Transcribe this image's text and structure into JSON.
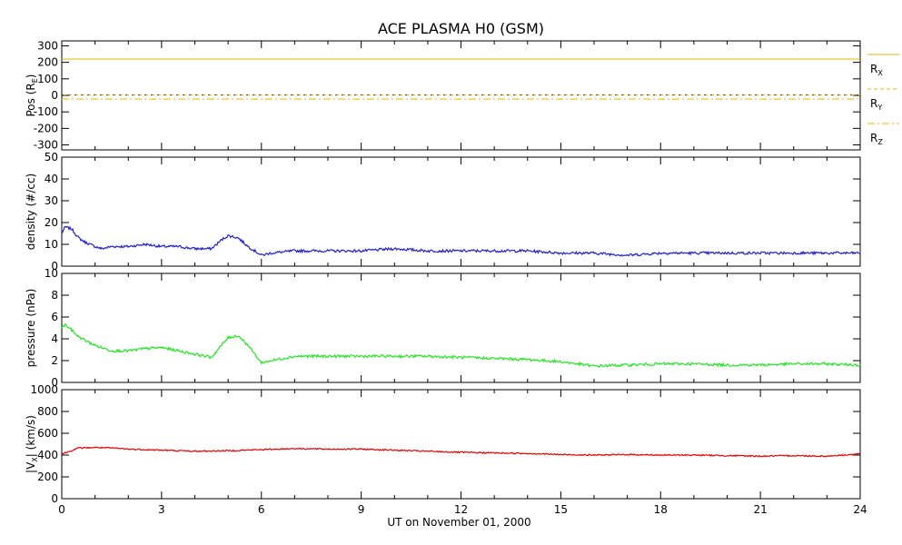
{
  "title": "ACE PLASMA H0 (GSM)",
  "xlabel": "UT on November 01, 2000",
  "chart_data": [
    {
      "type": "line",
      "panel": "position",
      "ylabel_main": "Pos (R",
      "ylabel_sub": "E",
      "ylabel_end": ")",
      "ylim": [
        -330,
        330
      ],
      "yticks": [
        300,
        200,
        100,
        0,
        -100,
        -200,
        -300
      ],
      "x": [
        0,
        24
      ],
      "series": [
        {
          "name_main": "R",
          "name_sub": "X",
          "color": "#e6b800",
          "dash": "solid",
          "values": [
            220,
            220
          ]
        },
        {
          "name_main": "R",
          "name_sub": "Y",
          "color": "#e6b800",
          "dash": "dash",
          "values": [
            3,
            3
          ]
        },
        {
          "name_main": "R",
          "name_sub": "Z",
          "color": "#e6b800",
          "dash": "dashdot",
          "values": [
            -22,
            -22
          ]
        }
      ]
    },
    {
      "type": "line",
      "panel": "density",
      "ylabel": "density (#/cc)",
      "ylim": [
        0,
        50
      ],
      "yticks": [
        50,
        40,
        30,
        20,
        10,
        0
      ],
      "color": "#2020c8",
      "series": [
        {
          "x": [
            0,
            0.1,
            0.3,
            0.5,
            0.7,
            1.0,
            1.2,
            1.5,
            2.0,
            2.5,
            3.0,
            3.5,
            4.0,
            4.5,
            4.8,
            5.0,
            5.3,
            5.6,
            6.0,
            6.3,
            7.0,
            8.0,
            9.0,
            10.0,
            11.0,
            12.0,
            13.0,
            14.0,
            15.0,
            16.0,
            17.0,
            18.0,
            19.0,
            20.0,
            21.0,
            22.0,
            23.0,
            24.0
          ],
          "values": [
            15,
            18,
            17,
            13,
            11,
            9,
            8,
            9,
            9,
            10,
            9,
            9,
            8,
            8,
            12,
            14,
            13,
            9,
            5,
            6,
            7,
            7,
            7,
            8,
            7,
            7,
            7,
            7,
            6,
            6,
            5,
            6,
            6,
            6,
            6,
            6,
            6,
            6
          ]
        }
      ]
    },
    {
      "type": "line",
      "panel": "pressure",
      "ylabel": "pressure (nPa)",
      "ylim": [
        0,
        10
      ],
      "yticks": [
        10,
        8,
        6,
        4,
        2,
        0
      ],
      "color": "#22e622",
      "series": [
        {
          "x": [
            0,
            0.1,
            0.3,
            0.5,
            0.8,
            1.0,
            1.5,
            2.0,
            2.5,
            3.0,
            3.5,
            4.0,
            4.5,
            4.8,
            5.0,
            5.3,
            5.6,
            6.0,
            6.3,
            7.0,
            8.0,
            9.0,
            10.0,
            11.0,
            12.0,
            13.0,
            14.0,
            15.0,
            16.0,
            17.0,
            18.0,
            19.0,
            20.0,
            21.0,
            22.0,
            23.0,
            24.0
          ],
          "values": [
            5.0,
            5.3,
            4.8,
            4.2,
            3.7,
            3.4,
            2.9,
            2.9,
            3.1,
            3.2,
            2.9,
            2.6,
            2.3,
            3.4,
            4.1,
            4.3,
            3.4,
            1.8,
            2.0,
            2.4,
            2.4,
            2.4,
            2.4,
            2.4,
            2.3,
            2.2,
            2.1,
            1.9,
            1.5,
            1.6,
            1.7,
            1.7,
            1.6,
            1.6,
            1.7,
            1.7,
            1.6
          ]
        }
      ]
    },
    {
      "type": "line",
      "panel": "velocity",
      "ylabel_prefix": "|V",
      "ylabel_sub": "X",
      "ylabel_suffix": "| (km/s)",
      "ylim": [
        0,
        1000
      ],
      "yticks": [
        1000,
        800,
        600,
        400,
        200,
        0
      ],
      "color": "#e60000",
      "series": [
        {
          "x": [
            0,
            0.2,
            0.5,
            1.0,
            1.5,
            2.0,
            3.0,
            4.0,
            5.0,
            6.0,
            7.0,
            8.0,
            9.0,
            10.0,
            11.0,
            12.0,
            13.0,
            14.0,
            15.0,
            16.0,
            17.0,
            18.0,
            19.0,
            20.0,
            21.0,
            22.0,
            23.0,
            24.0
          ],
          "values": [
            410,
            430,
            465,
            470,
            465,
            455,
            445,
            435,
            440,
            450,
            460,
            455,
            455,
            445,
            435,
            425,
            420,
            415,
            405,
            400,
            405,
            400,
            400,
            395,
            390,
            395,
            390,
            410
          ]
        }
      ]
    }
  ],
  "xaxis": {
    "ticks": [
      0,
      3,
      6,
      9,
      12,
      15,
      18,
      21,
      24
    ],
    "range": [
      0,
      24
    ]
  }
}
